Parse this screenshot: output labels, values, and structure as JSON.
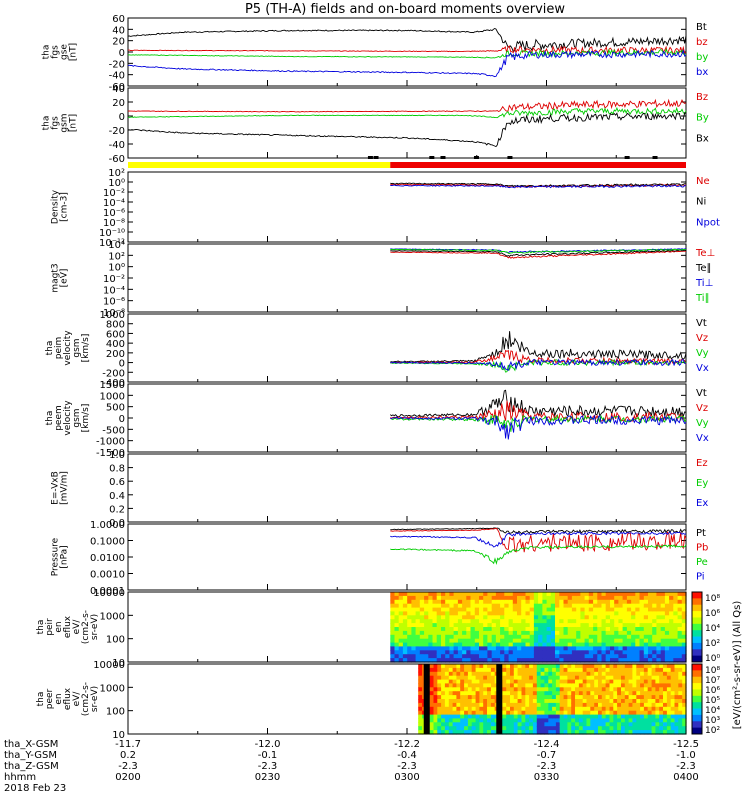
{
  "title": "P5 (TH-A) fields and on-board moments overview",
  "chart_data": [
    {
      "type": "line",
      "id": "fgs-gse",
      "ylabel": [
        "tha",
        "fgs",
        "gse",
        "[nT]"
      ],
      "ylim": [
        -60,
        60
      ],
      "yticks": [
        "60",
        "40",
        "20",
        "0",
        "-20",
        "-40",
        "-60"
      ],
      "legend": [
        {
          "label": "Bt",
          "color": "#000000"
        },
        {
          "label": "bz",
          "color": "#dd0000"
        },
        {
          "label": "by",
          "color": "#00cc00"
        },
        {
          "label": "bx",
          "color": "#0000dd"
        }
      ],
      "series": [
        {
          "name": "Bt",
          "color": "#000000",
          "x": [
            0,
            0.1,
            0.3,
            0.5,
            0.62,
            0.66,
            0.68,
            0.72,
            0.8,
            0.9,
            1.0
          ],
          "y": [
            28,
            35,
            38,
            38,
            35,
            40,
            8,
            12,
            15,
            18,
            22
          ],
          "noise": [
            1,
            1,
            1,
            1,
            1,
            2,
            10,
            10,
            8,
            8,
            8
          ]
        },
        {
          "name": "bz",
          "color": "#dd0000",
          "x": [
            0,
            0.3,
            0.6,
            0.66,
            0.68,
            0.8,
            1.0
          ],
          "y": [
            3,
            2,
            1,
            2,
            5,
            3,
            3
          ],
          "noise": [
            0.5,
            0.5,
            0.5,
            1,
            6,
            6,
            6
          ]
        },
        {
          "name": "by",
          "color": "#00cc00",
          "x": [
            0,
            0.3,
            0.6,
            0.66,
            0.68,
            0.8,
            1.0
          ],
          "y": [
            -5,
            -8,
            -9,
            -10,
            -3,
            -2,
            0
          ],
          "noise": [
            0.5,
            0.5,
            0.5,
            1,
            5,
            5,
            5
          ]
        },
        {
          "name": "bx",
          "color": "#0000dd",
          "x": [
            0,
            0.1,
            0.3,
            0.5,
            0.62,
            0.66,
            0.68,
            0.72,
            1.0
          ],
          "y": [
            -24,
            -30,
            -34,
            -36,
            -38,
            -42,
            -10,
            -5,
            -3
          ],
          "noise": [
            1,
            1,
            1,
            1,
            1,
            2,
            8,
            6,
            6
          ]
        }
      ]
    },
    {
      "type": "line",
      "id": "fgs-gsm",
      "ylabel": [
        "tha",
        "fgs",
        "gsm",
        "[nT]"
      ],
      "ylim": [
        -75,
        40
      ],
      "yticks": [
        "40",
        "20",
        "0",
        "-20",
        "-40",
        "-60"
      ],
      "legend": [
        {
          "label": "Bz",
          "color": "#dd0000"
        },
        {
          "label": "By",
          "color": "#00cc00"
        },
        {
          "label": "Bx",
          "color": "#000000"
        }
      ],
      "series": [
        {
          "name": "Bz",
          "color": "#dd0000",
          "x": [
            0,
            0.3,
            0.6,
            0.66,
            0.68,
            0.8,
            1.0
          ],
          "y": [
            2,
            1,
            2,
            2,
            8,
            12,
            15
          ],
          "noise": [
            0.5,
            0.5,
            0.5,
            1,
            6,
            6,
            6
          ]
        },
        {
          "name": "By",
          "color": "#00cc00",
          "x": [
            0,
            0.3,
            0.6,
            0.66,
            0.68,
            0.8,
            1.0
          ],
          "y": [
            -8,
            -5,
            -5,
            -8,
            -2,
            2,
            2
          ],
          "noise": [
            0.5,
            0.5,
            0.5,
            1,
            5,
            5,
            5
          ]
        },
        {
          "name": "Bx",
          "color": "#000000",
          "x": [
            0,
            0.1,
            0.3,
            0.5,
            0.62,
            0.66,
            0.68,
            0.75,
            1.0
          ],
          "y": [
            -28,
            -34,
            -38,
            -42,
            -48,
            -55,
            -15,
            -10,
            -5
          ],
          "noise": [
            1,
            1,
            1,
            1,
            1,
            2,
            8,
            6,
            6
          ]
        }
      ]
    },
    {
      "type": "line",
      "id": "density",
      "ylabel": [
        "Density",
        "[cm-3]"
      ],
      "ylim": [
        -12,
        2
      ],
      "log": true,
      "yticks": [
        "10²",
        "10⁰",
        "10⁻²",
        "10⁻⁴",
        "10⁻⁶",
        "10⁻⁸",
        "10⁻¹⁰",
        "10⁻¹²"
      ],
      "legend": [
        {
          "label": "Ne",
          "color": "#dd0000"
        },
        {
          "label": "Ni",
          "color": "#000000"
        },
        {
          "label": "Npot",
          "color": "#0000dd"
        }
      ],
      "series": [
        {
          "name": "Ne",
          "color": "#dd0000",
          "x": [
            0.47,
            0.66,
            0.68,
            1.0
          ],
          "y": [
            -0.5,
            -0.6,
            -0.9,
            -0.6
          ],
          "noise": [
            0.1,
            0.1,
            0.2,
            0.2
          ]
        },
        {
          "name": "Ni",
          "color": "#000000",
          "x": [
            0.47,
            0.66,
            0.68,
            1.0
          ],
          "y": [
            -0.3,
            -0.4,
            -0.8,
            -0.5
          ],
          "noise": [
            0.1,
            0.1,
            0.2,
            0.2
          ]
        },
        {
          "name": "Npot",
          "color": "#0000dd",
          "x": [
            0.47,
            0.66,
            0.68,
            1.0
          ],
          "y": [
            -0.7,
            -0.8,
            -1.0,
            -0.8
          ],
          "noise": [
            0.1,
            0.1,
            0.2,
            0.2
          ]
        }
      ]
    },
    {
      "type": "line",
      "id": "temp",
      "ylabel": [
        "magt3",
        "[eV]"
      ],
      "ylim": [
        -10,
        5
      ],
      "log": true,
      "yticks": [
        "10⁴",
        "10²",
        "10⁰",
        "10⁻²",
        "10⁻⁴",
        "10⁻⁶",
        "10⁻⁸"
      ],
      "legend": [
        {
          "label": "Te⊥",
          "color": "#dd0000"
        },
        {
          "label": "Te∥",
          "color": "#000000"
        },
        {
          "label": "Ti⊥",
          "color": "#0000dd"
        },
        {
          "label": "Ti∥",
          "color": "#00cc00"
        }
      ],
      "series": [
        {
          "name": "Te⊥",
          "color": "#dd0000",
          "x": [
            0.47,
            0.66,
            0.68,
            1.0
          ],
          "y": [
            3.2,
            3.0,
            2.0,
            3.4
          ],
          "noise": [
            0.05,
            0.1,
            0.2,
            0.1
          ]
        },
        {
          "name": "Te∥",
          "color": "#000000",
          "x": [
            0.47,
            0.66,
            0.68,
            1.0
          ],
          "y": [
            3.5,
            3.3,
            2.5,
            3.6
          ],
          "noise": [
            0.05,
            0.1,
            0.2,
            0.1
          ]
        },
        {
          "name": "Ti⊥",
          "color": "#0000dd",
          "x": [
            0.47,
            0.66,
            0.68,
            1.0
          ],
          "y": [
            3.9,
            3.7,
            3.2,
            3.9
          ],
          "noise": [
            0.05,
            0.1,
            0.2,
            0.1
          ]
        },
        {
          "name": "Ti∥",
          "color": "#00cc00",
          "x": [
            0.47,
            0.66,
            0.68,
            1.0
          ],
          "y": [
            3.8,
            3.6,
            3.1,
            3.8
          ],
          "noise": [
            0.05,
            0.1,
            0.2,
            0.1
          ]
        }
      ]
    },
    {
      "type": "line",
      "id": "peim-vel",
      "ylabel": [
        "tha",
        "peim",
        "velocity",
        "gsm",
        "[km/s]"
      ],
      "ylim": [
        -400,
        1000
      ],
      "yticks": [
        "1000",
        "800",
        "600",
        "400",
        "200",
        "0",
        "-200",
        "-400"
      ],
      "legend": [
        {
          "label": "Vt",
          "color": "#000000"
        },
        {
          "label": "Vz",
          "color": "#dd0000"
        },
        {
          "label": "Vy",
          "color": "#00cc00"
        },
        {
          "label": "Vx",
          "color": "#0000dd"
        }
      ],
      "series": [
        {
          "name": "Vt",
          "color": "#000000",
          "x": [
            0.47,
            0.62,
            0.66,
            0.68,
            0.72,
            1.0
          ],
          "y": [
            20,
            30,
            200,
            500,
            200,
            150
          ],
          "noise": [
            10,
            20,
            80,
            250,
            100,
            80
          ]
        },
        {
          "name": "Vz",
          "color": "#dd0000",
          "x": [
            0.47,
            0.62,
            0.66,
            0.68,
            0.72,
            1.0
          ],
          "y": [
            0,
            10,
            100,
            150,
            50,
            20
          ],
          "noise": [
            10,
            15,
            60,
            150,
            60,
            60
          ]
        },
        {
          "name": "Vy",
          "color": "#00cc00",
          "x": [
            0.47,
            0.62,
            0.66,
            0.68,
            0.72,
            1.0
          ],
          "y": [
            -10,
            -20,
            -50,
            -100,
            0,
            0
          ],
          "noise": [
            10,
            15,
            60,
            120,
            60,
            60
          ]
        },
        {
          "name": "Vx",
          "color": "#0000dd",
          "x": [
            0.47,
            0.62,
            0.66,
            0.68,
            0.72,
            1.0
          ],
          "y": [
            0,
            -10,
            -30,
            -80,
            0,
            0
          ],
          "noise": [
            10,
            15,
            50,
            100,
            60,
            60
          ]
        }
      ]
    },
    {
      "type": "line",
      "id": "peem-vel",
      "ylabel": [
        "tha",
        "peem",
        "velocity",
        "gsm",
        "[km/s]"
      ],
      "ylim": [
        -1500,
        1500
      ],
      "yticks": [
        "1500",
        "1000",
        "500",
        "0",
        "-500",
        "-1000",
        "-1500"
      ],
      "legend": [
        {
          "label": "Vt",
          "color": "#000000"
        },
        {
          "label": "Vz",
          "color": "#dd0000"
        },
        {
          "label": "Vy",
          "color": "#00cc00"
        },
        {
          "label": "Vx",
          "color": "#0000dd"
        }
      ],
      "series": [
        {
          "name": "Vt",
          "color": "#000000",
          "x": [
            0.47,
            0.62,
            0.66,
            0.68,
            0.72,
            1.0
          ],
          "y": [
            100,
            150,
            600,
            800,
            300,
            300
          ],
          "noise": [
            50,
            60,
            400,
            500,
            250,
            250
          ]
        },
        {
          "name": "Vz",
          "color": "#dd0000",
          "x": [
            0.47,
            0.62,
            0.66,
            0.68,
            0.72,
            1.0
          ],
          "y": [
            20,
            40,
            100,
            300,
            50,
            50
          ],
          "noise": [
            40,
            60,
            400,
            500,
            200,
            200
          ]
        },
        {
          "name": "Vy",
          "color": "#00cc00",
          "x": [
            0.47,
            0.62,
            0.66,
            0.68,
            0.72,
            1.0
          ],
          "y": [
            -50,
            -60,
            -100,
            -300,
            -50,
            -50
          ],
          "noise": [
            40,
            60,
            300,
            400,
            150,
            150
          ]
        },
        {
          "name": "Vx",
          "color": "#0000dd",
          "x": [
            0.47,
            0.62,
            0.66,
            0.68,
            0.72,
            1.0
          ],
          "y": [
            0,
            -20,
            -200,
            -500,
            -100,
            -100
          ],
          "noise": [
            40,
            60,
            300,
            500,
            200,
            200
          ]
        }
      ]
    },
    {
      "type": "line",
      "id": "efield",
      "ylabel": [
        "E=-VxB",
        "[mV/m]"
      ],
      "ylim": [
        0,
        1
      ],
      "yticks": [
        "1.0",
        "0.8",
        "0.6",
        "0.4",
        "0.2",
        "0.0"
      ],
      "legend": [
        {
          "label": "Ez",
          "color": "#dd0000"
        },
        {
          "label": "Ey",
          "color": "#00cc00"
        },
        {
          "label": "Ex",
          "color": "#0000dd"
        }
      ],
      "series": []
    },
    {
      "type": "line",
      "id": "pressure",
      "ylabel": [
        "Pressure",
        "[nPa]"
      ],
      "ylim": [
        -4,
        0.2
      ],
      "log": true,
      "yticks": [
        "1.0000",
        "0.1000",
        "0.0100",
        "0.0010",
        "0.0001"
      ],
      "legend": [
        {
          "label": "Pt",
          "color": "#000000"
        },
        {
          "label": "Pb",
          "color": "#dd0000"
        },
        {
          "label": "Pe",
          "color": "#00cc00"
        },
        {
          "label": "Pi",
          "color": "#0000dd"
        }
      ],
      "series": [
        {
          "name": "Pt",
          "color": "#000000",
          "x": [
            0.47,
            0.62,
            0.66,
            0.68,
            0.72,
            1.0
          ],
          "y": [
            -0.15,
            -0.1,
            -0.05,
            -0.35,
            -0.3,
            -0.25
          ],
          "noise": [
            0.02,
            0.02,
            0.03,
            0.15,
            0.1,
            0.1
          ]
        },
        {
          "name": "Pb",
          "color": "#dd0000",
          "x": [
            0.47,
            0.62,
            0.66,
            0.68,
            0.72,
            1.0
          ],
          "y": [
            -0.25,
            -0.2,
            -0.1,
            -1.2,
            -1.0,
            -0.9
          ],
          "noise": [
            0.02,
            0.02,
            0.03,
            0.6,
            0.6,
            0.6
          ]
        },
        {
          "name": "Pe",
          "color": "#00cc00",
          "x": [
            0.47,
            0.62,
            0.66,
            0.68,
            0.72,
            1.0
          ],
          "y": [
            -1.4,
            -1.5,
            -2.2,
            -1.6,
            -1.3,
            -1.2
          ],
          "noise": [
            0.03,
            0.05,
            0.2,
            0.1,
            0.08,
            0.08
          ]
        },
        {
          "name": "Pi",
          "color": "#0000dd",
          "x": [
            0.47,
            0.62,
            0.66,
            0.68,
            0.72,
            1.0
          ],
          "y": [
            -0.6,
            -0.65,
            -1.3,
            -0.5,
            -0.4,
            -0.4
          ],
          "noise": [
            0.03,
            0.05,
            0.2,
            0.1,
            0.08,
            0.08
          ]
        }
      ]
    },
    {
      "type": "heatmap",
      "id": "peir",
      "ylabel": [
        "tha",
        "peir",
        "en",
        "eflux",
        "eV/",
        "(cm2-s-",
        "sr-eV)"
      ],
      "yticks": [
        "10000",
        "1000",
        "100",
        "10"
      ],
      "x_start": 0.47,
      "colorbar_ticks": [
        "10⁸",
        "10⁶",
        "10⁴",
        "10²",
        "10⁰"
      ]
    },
    {
      "type": "heatmap",
      "id": "peer",
      "ylabel": [
        "tha",
        "peer",
        "en",
        "eflux",
        "eV/",
        "(cm2-s-",
        "sr-eV)"
      ],
      "yticks": [
        "10000",
        "1000",
        "100",
        "10"
      ],
      "x_start": 0.52,
      "colorbar_ticks": [
        "10⁸",
        "10⁷",
        "10⁶",
        "10⁵",
        "10⁴",
        "10³",
        "10²"
      ]
    }
  ],
  "mode_bar": {
    "segments": [
      {
        "from": 0,
        "to": 0.47,
        "color": "#ffff00"
      },
      {
        "from": 0.47,
        "to": 1.0,
        "color": "#ee0000"
      }
    ]
  },
  "colorbar_label": "[eV/(cm²-s-sr-eV)] (All Qs)",
  "x_axis": {
    "rows": [
      {
        "label": "tha_X-GSM",
        "values": [
          "-11.7",
          "-12.0",
          "-12.2",
          "-12.4",
          "-12.5"
        ]
      },
      {
        "label": "tha_Y-GSM",
        "values": [
          "0.2",
          "-0.1",
          "-0.4",
          "-0.7",
          "-1.0"
        ]
      },
      {
        "label": "tha_Z-GSM",
        "values": [
          "-2.3",
          "-2.3",
          "-2.3",
          "-2.3",
          "-2.3"
        ]
      },
      {
        "label": "hhmm",
        "values": [
          "0200",
          "0230",
          "0300",
          "0330",
          "0400"
        ]
      }
    ],
    "date": "2018 Feb 23"
  }
}
